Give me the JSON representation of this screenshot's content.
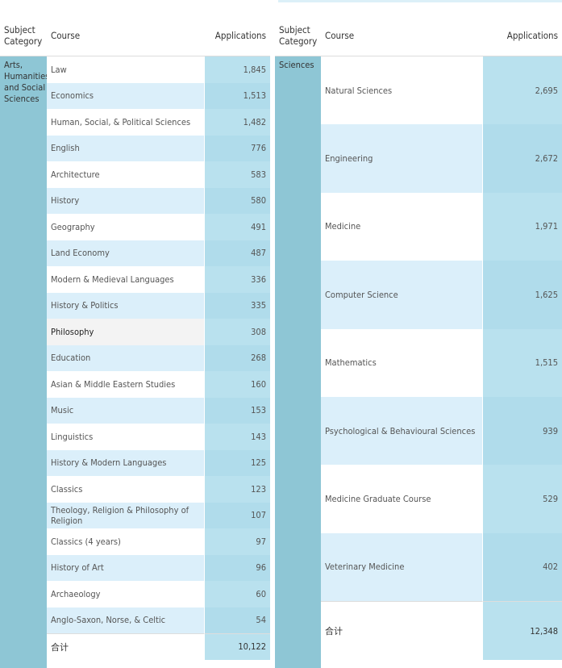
{
  "left": {
    "headers": [
      "Subject Category",
      "Course",
      "Applications"
    ],
    "category": "Arts, Humanities and Social Sciences",
    "rows": [
      [
        "Law",
        "1,845"
      ],
      [
        "Economics",
        "1,513"
      ],
      [
        "Human, Social, & Political Sciences",
        "1,482"
      ],
      [
        "English",
        "776"
      ],
      [
        "Architecture",
        "583"
      ],
      [
        "History",
        "580"
      ],
      [
        "Geography",
        "491"
      ],
      [
        "Land Economy",
        "487"
      ],
      [
        "Modern & Medieval Languages",
        "336"
      ],
      [
        "History & Politics",
        "335"
      ],
      [
        "Philosophy",
        "308"
      ],
      [
        "Education",
        "268"
      ],
      [
        "Asian & Middle Eastern Studies",
        "160"
      ],
      [
        "Music",
        "153"
      ],
      [
        "Linguistics",
        "143"
      ],
      [
        "History & Modern Languages",
        "125"
      ],
      [
        "Classics",
        "123"
      ],
      [
        "Theology, Religion & Philosophy of Religion",
        "107"
      ],
      [
        "Classics (4 years)",
        "97"
      ],
      [
        "History of Art",
        "96"
      ],
      [
        "Archaeology",
        "60"
      ],
      [
        "Anglo-Saxon, Norse, & Celtic",
        "54"
      ]
    ],
    "total": [
      "合计",
      "10,122"
    ]
  },
  "right": {
    "headers": [
      "Subject Category",
      "Course",
      "Applications"
    ],
    "category": "Sciences",
    "rows": [
      [
        "Natural Sciences",
        "2,695"
      ],
      [
        "Engineering",
        "2,672"
      ],
      [
        "Medicine",
        "1,971"
      ],
      [
        "Computer Science",
        "1,625"
      ],
      [
        "Mathematics",
        "1,515"
      ],
      [
        "Psychological & Behavioural Sciences",
        "939"
      ],
      [
        "Medicine Graduate Course",
        "529"
      ],
      [
        "Veterinary Medicine",
        "402"
      ]
    ],
    "total": [
      "合计",
      "12,348"
    ]
  }
}
